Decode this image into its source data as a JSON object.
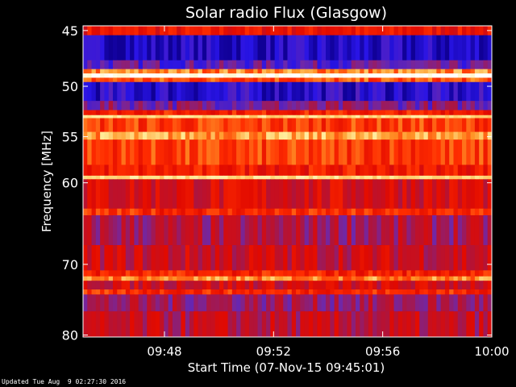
{
  "chart_data": {
    "type": "heatmap",
    "title": "Solar radio Flux (Glasgow)",
    "xlabel": "Start Time (07-Nov-15 09:45:01)",
    "ylabel": "Frequency [MHz]",
    "x_range": [
      "09:45:01",
      "10:00"
    ],
    "x_ticks": [
      "09:48",
      "09:52",
      "09:56",
      "10:00"
    ],
    "x_tick_minutes": [
      48,
      52,
      56,
      60
    ],
    "x_start_minute": 45.0167,
    "x_end_minute": 60,
    "y_scale": "log",
    "y_range": [
      45,
      80
    ],
    "y_ticks": [
      "45",
      "50",
      "55",
      "60",
      "70",
      "80"
    ],
    "y_tick_values": [
      45,
      50,
      55,
      60,
      70,
      80
    ],
    "grid": false,
    "colormap": "blue-red-yellow-white",
    "bands": [
      {
        "from": 44.6,
        "to": 45.4,
        "level": 0.55
      },
      {
        "from": 45.4,
        "to": 47.6,
        "level": 0.07
      },
      {
        "from": 47.6,
        "to": 48.4,
        "level": 0.22
      },
      {
        "from": 48.4,
        "to": 48.8,
        "level": 0.78
      },
      {
        "from": 48.8,
        "to": 49.2,
        "level": 1.0
      },
      {
        "from": 49.2,
        "to": 49.6,
        "level": 0.7
      },
      {
        "from": 49.6,
        "to": 51.4,
        "level": 0.1
      },
      {
        "from": 51.4,
        "to": 52.3,
        "level": 0.28
      },
      {
        "from": 52.3,
        "to": 52.8,
        "level": 0.6
      },
      {
        "from": 52.8,
        "to": 53.1,
        "level": 0.9
      },
      {
        "from": 53.1,
        "to": 54.5,
        "level": 0.66
      },
      {
        "from": 54.5,
        "to": 55.3,
        "level": 0.82
      },
      {
        "from": 55.3,
        "to": 58.0,
        "level": 0.66
      },
      {
        "from": 58.0,
        "to": 59.2,
        "level": 0.58
      },
      {
        "from": 59.2,
        "to": 59.6,
        "level": 0.9
      },
      {
        "from": 59.6,
        "to": 63.0,
        "level": 0.48
      },
      {
        "from": 63.0,
        "to": 63.8,
        "level": 0.62
      },
      {
        "from": 63.8,
        "to": 67.5,
        "level": 0.36
      },
      {
        "from": 67.5,
        "to": 70.8,
        "level": 0.44
      },
      {
        "from": 70.8,
        "to": 71.6,
        "level": 0.6
      },
      {
        "from": 71.6,
        "to": 72.2,
        "level": 0.78
      },
      {
        "from": 72.2,
        "to": 73.4,
        "level": 0.46
      },
      {
        "from": 73.4,
        "to": 74.1,
        "level": 0.62
      },
      {
        "from": 74.1,
        "to": 76.5,
        "level": 0.34
      },
      {
        "from": 76.5,
        "to": 80.3,
        "level": 0.4
      }
    ]
  },
  "footer": "Updated Tue Aug  9 02:27:30 2016"
}
